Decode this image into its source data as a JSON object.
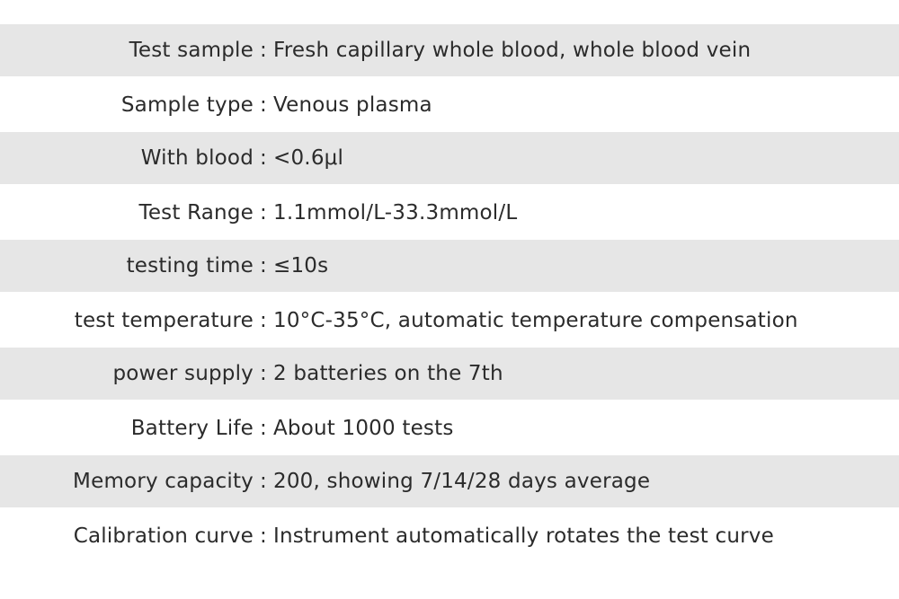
{
  "specs": [
    {
      "label": "Test sample",
      "separator": ":",
      "value": "Fresh capillary whole blood, whole blood vein"
    },
    {
      "label": "Sample type",
      "separator": ":",
      "value": "Venous plasma"
    },
    {
      "label": "With blood",
      "separator": ":",
      "value": "<0.6μl"
    },
    {
      "label": "Test Range",
      "separator": ":",
      "value": "1.1mmol/L-33.3mmol/L"
    },
    {
      "label": "testing time",
      "separator": ":",
      "value": "≤10s"
    },
    {
      "label": "test temperature",
      "separator": ":",
      "value": "10°C-35°C, automatic temperature compensation"
    },
    {
      "label": "power supply",
      "separator": ":",
      "value": "2 batteries on the 7th"
    },
    {
      "label": "Battery Life",
      "separator": ":",
      "value": "About 1000 tests"
    },
    {
      "label": "Memory capacity",
      "separator": ":",
      "value": "200, showing 7/14/28 days average"
    },
    {
      "label": "Calibration curve",
      "separator": ":",
      "value": "Instrument automatically rotates the test curve"
    }
  ],
  "colors": {
    "shaded_row": "#e6e6e6",
    "plain_row": "#ffffff",
    "text": "#2b2b2b"
  }
}
